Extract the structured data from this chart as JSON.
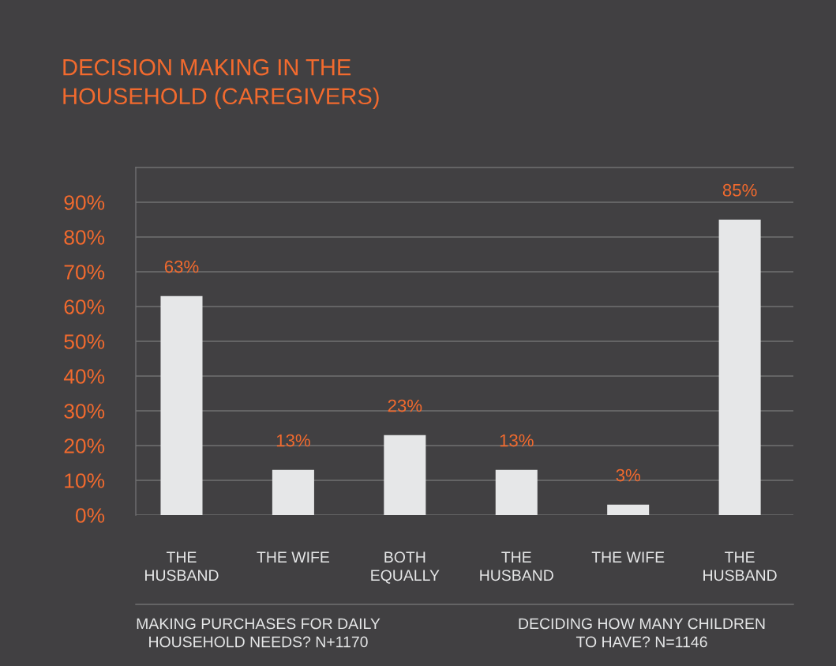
{
  "chart_data": {
    "type": "bar",
    "title": "DECISION MAKING IN THE\nHOUSEHOLD (CAREGIVERS)",
    "categories": [
      "THE\nHUSBAND",
      "THE WIFE",
      "BOTH\nEQUALLY",
      "THE\nHUSBAND",
      "THE WIFE",
      "THE\nHUSBAND"
    ],
    "values": [
      63,
      13,
      23,
      13,
      3,
      85
    ],
    "color": "#e6e7e8",
    "value_labels": [
      "63%",
      "13%",
      "23%",
      "13%",
      "3%",
      "85%"
    ],
    "ylim": [
      0,
      100
    ],
    "yticks": [
      {
        "value": 0,
        "label": "0%"
      },
      {
        "value": 10,
        "label": "10%"
      },
      {
        "value": 20,
        "label": "20%"
      },
      {
        "value": 30,
        "label": "30%"
      },
      {
        "value": 40,
        "label": "40%"
      },
      {
        "value": 50,
        "label": "50%"
      },
      {
        "value": 60,
        "label": "60%"
      },
      {
        "value": 70,
        "label": "70%"
      },
      {
        "value": 80,
        "label": "80%"
      },
      {
        "value": 90,
        "label": "90%"
      }
    ],
    "grid": "y",
    "annotations": [
      "MAKING PURCHASES FOR DAILY\nHOUSEHOLD NEEDS? N+1170",
      "DECIDING HOW MANY CHILDREN\nTO HAVE? N=1146"
    ]
  }
}
